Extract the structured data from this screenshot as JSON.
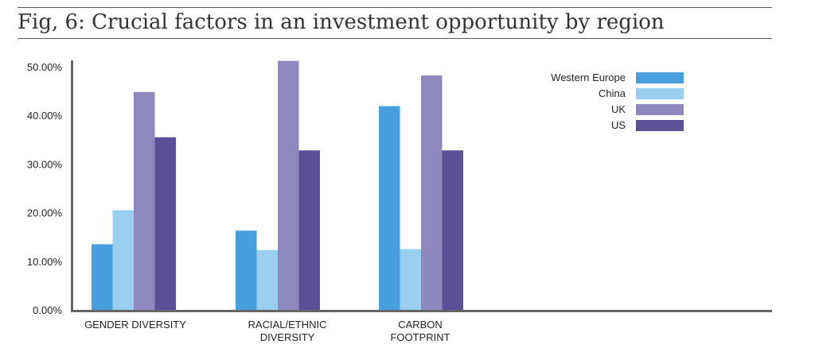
{
  "chart_data": {
    "type": "bar",
    "title": "Fig, 6: Crucial factors in an investment opportunity by region",
    "categories": [
      [
        "GENDER DIVERSITY"
      ],
      [
        "RACIAL/ETHNIC",
        "DIVERSITY"
      ],
      [
        "CARBON",
        "FOOTPRINT"
      ]
    ],
    "series": [
      {
        "name": "Western Europe",
        "color": "#479fdd",
        "values": [
          13.5,
          16.3,
          41.9
        ]
      },
      {
        "name": "China",
        "color": "#9acfef",
        "values": [
          20.5,
          12.3,
          12.5
        ]
      },
      {
        "name": "UK",
        "color": "#8f88bf",
        "values": [
          44.8,
          51.2,
          48.2
        ]
      },
      {
        "name": "US",
        "color": "#5b5097",
        "values": [
          35.5,
          32.8,
          32.8
        ]
      }
    ],
    "ylim": [
      0,
      50
    ],
    "yticks": [
      "0.00%",
      "10.00%",
      "20.00%",
      "30.00%",
      "40.00%",
      "50.00%"
    ],
    "ytick_values": [
      0,
      10,
      20,
      30,
      40,
      50
    ],
    "legend_position": "top-right",
    "grid": false
  }
}
